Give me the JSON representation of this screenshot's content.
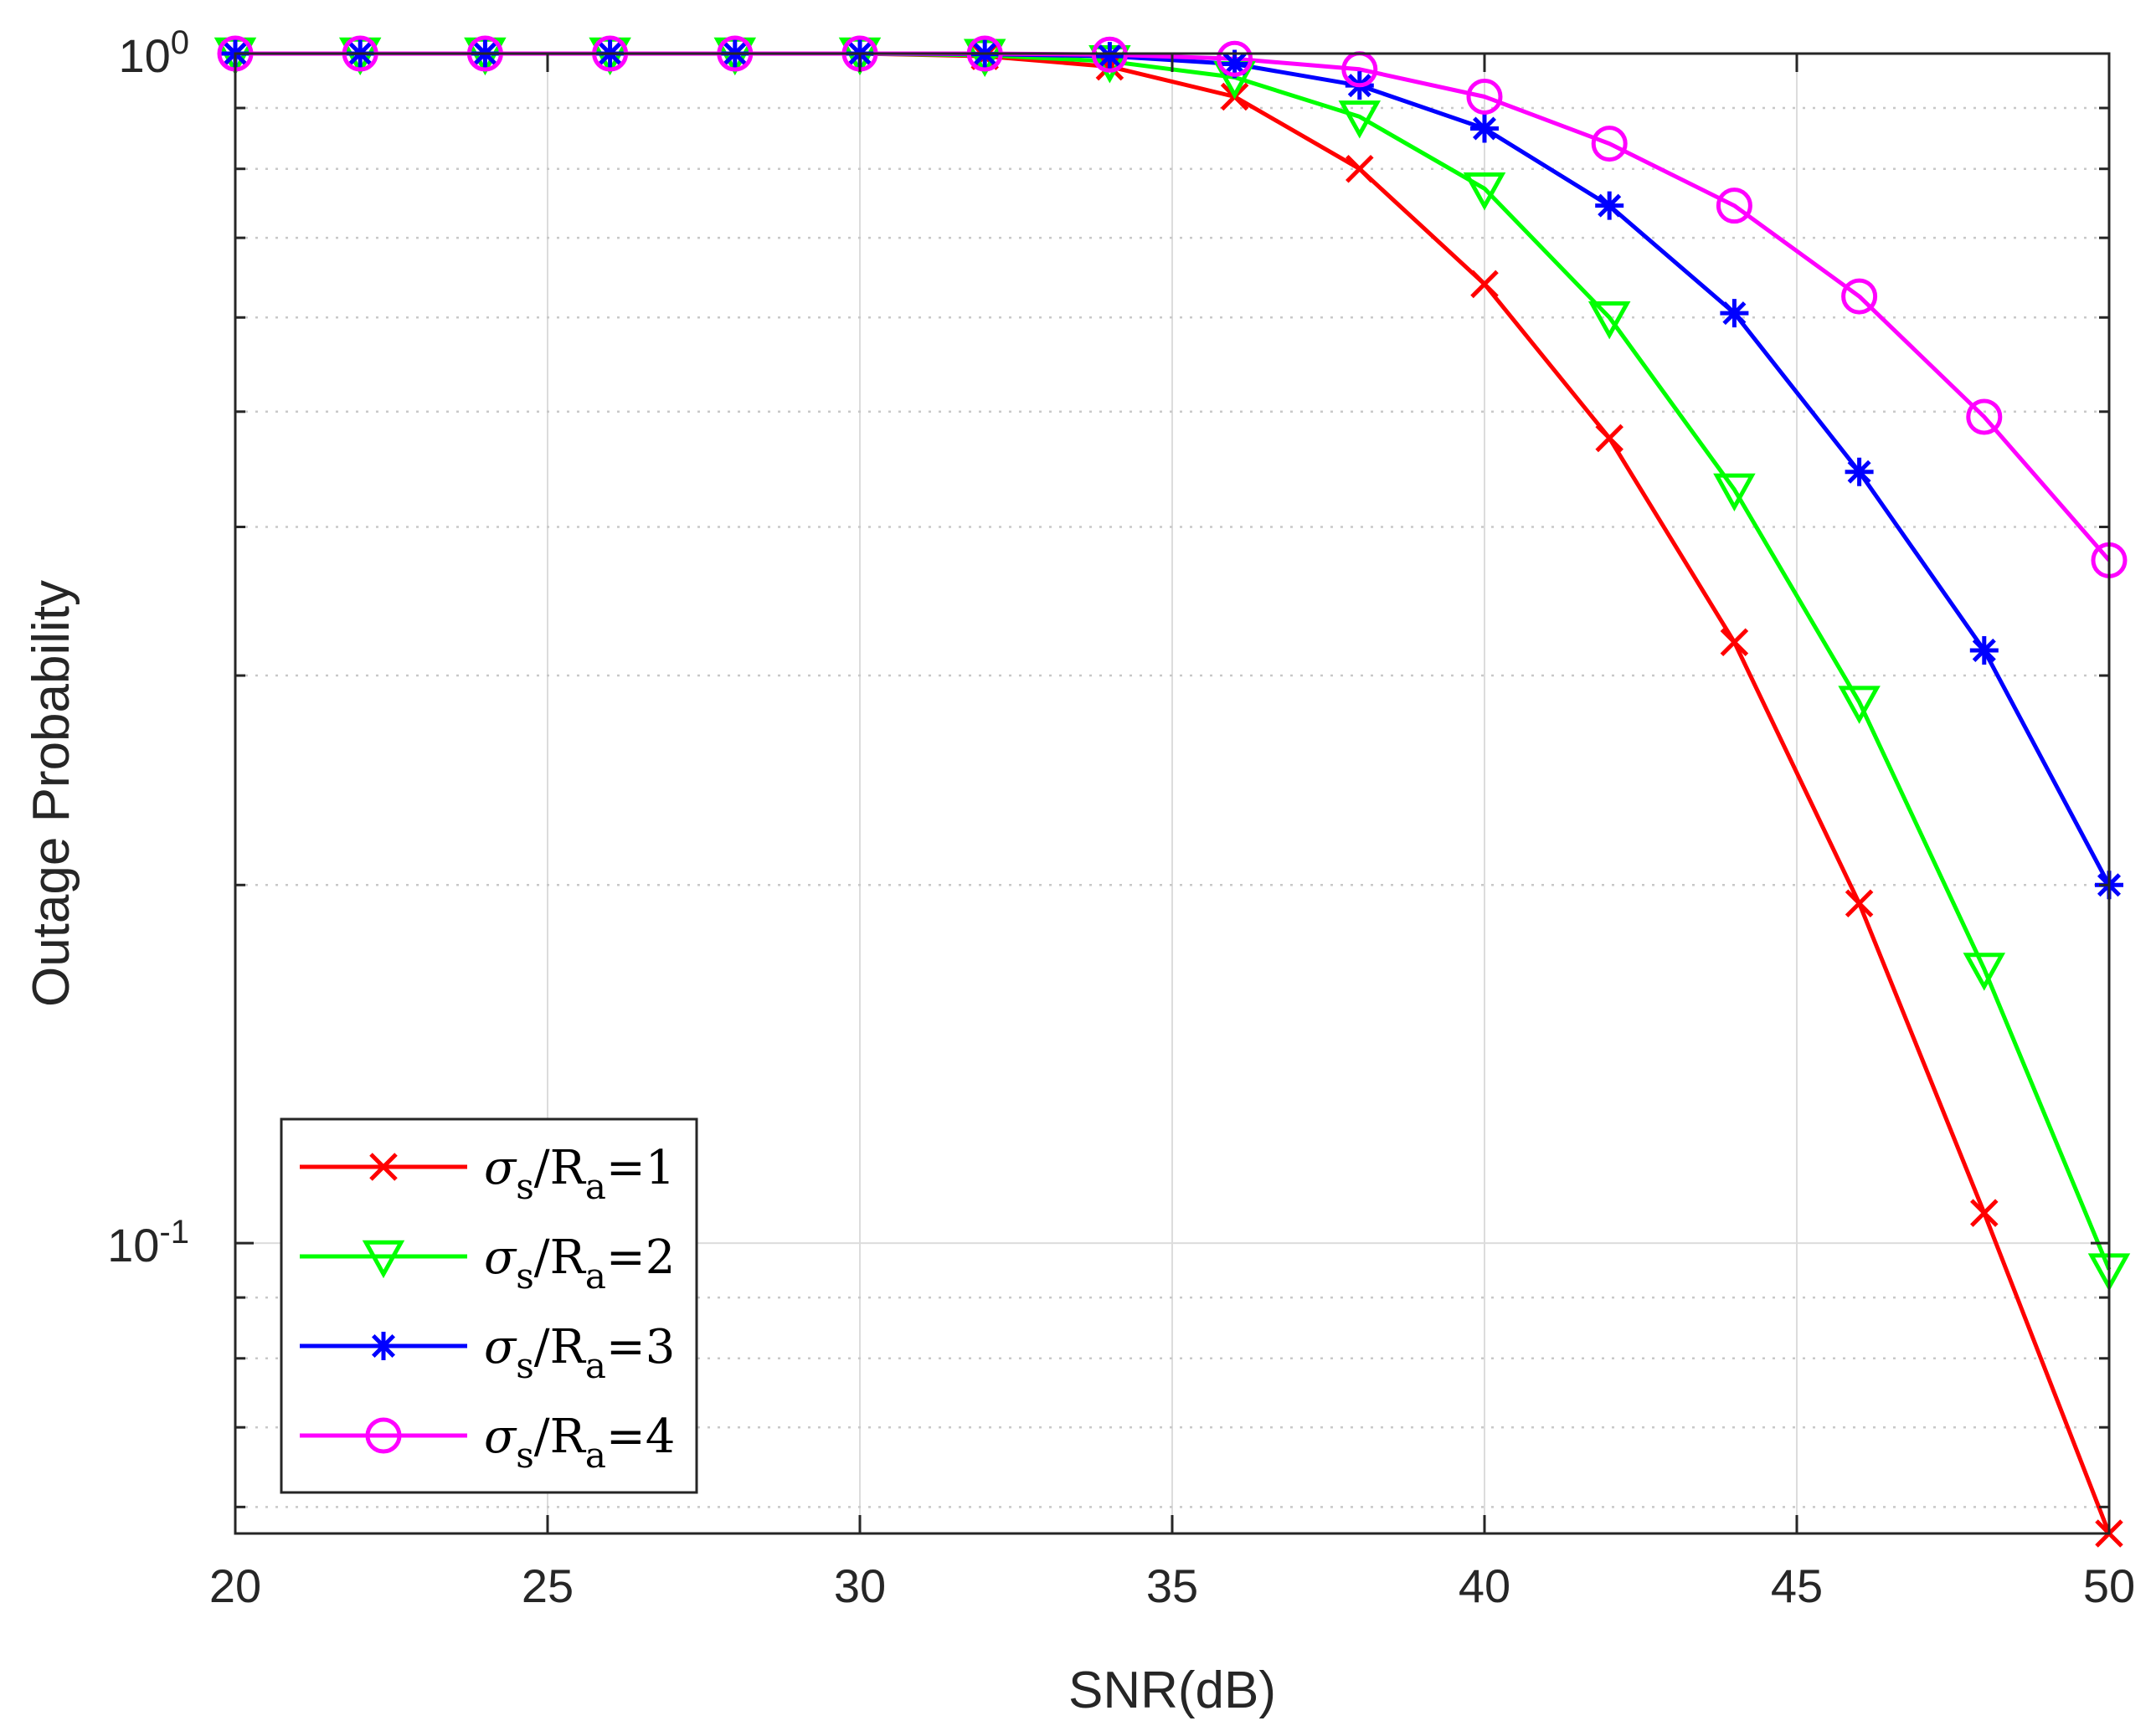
{
  "chart_data": {
    "type": "line",
    "title": "",
    "xlabel": "SNR(dB)",
    "ylabel": "Outage Probability",
    "xlim": [
      20,
      50
    ],
    "ylim": [
      0.057,
      1.0
    ],
    "yscale": "log",
    "grid": true,
    "x_ticks": [
      20,
      25,
      30,
      35,
      40,
      45,
      50
    ],
    "x_tick_labels": [
      "20",
      "25",
      "30",
      "35",
      "40",
      "45",
      "50"
    ],
    "y_ticks": [
      {
        "value": 1.0,
        "base": "10",
        "exp": "0"
      },
      {
        "value": 0.1,
        "base": "10",
        "exp": "-1"
      }
    ],
    "y_minor_ticks": [
      0.06,
      0.07,
      0.08,
      0.09,
      0.2,
      0.3,
      0.4,
      0.5,
      0.6,
      0.7,
      0.8,
      0.9
    ],
    "legend_position": "bottom-left",
    "x": [
      20,
      22,
      24,
      26,
      28,
      30,
      32,
      34,
      36,
      38,
      40,
      42,
      44,
      46,
      48,
      50
    ],
    "series": [
      {
        "name": "σs/Ra=1",
        "legend_sym": "σ",
        "legend_sub1": "s",
        "legend_mid": "/R",
        "legend_sub2": "a",
        "legend_tail": "=1",
        "color": "#ff0000",
        "marker": "x",
        "values": [
          1.0,
          1.0,
          1.0,
          1.0,
          1.0,
          1.0,
          0.995,
          0.975,
          0.92,
          0.8,
          0.64,
          0.475,
          0.32,
          0.193,
          0.106,
          0.057
        ]
      },
      {
        "name": "σs/Ra=2",
        "legend_sym": "σ",
        "legend_sub1": "s",
        "legend_mid": "/R",
        "legend_sub2": "a",
        "legend_tail": "=2",
        "color": "#00ff00",
        "marker": "triangle-down",
        "values": [
          1.0,
          1.0,
          1.0,
          1.0,
          1.0,
          1.0,
          0.997,
          0.985,
          0.955,
          0.885,
          0.77,
          0.6,
          0.43,
          0.285,
          0.17,
          0.095
        ]
      },
      {
        "name": "σs/Ra=3",
        "legend_sym": "σ",
        "legend_sub1": "s",
        "legend_mid": "/R",
        "legend_sub2": "a",
        "legend_tail": "=3",
        "color": "#0000ff",
        "marker": "asterisk",
        "values": [
          1.0,
          1.0,
          1.0,
          1.0,
          1.0,
          1.0,
          0.999,
          0.995,
          0.98,
          0.94,
          0.865,
          0.745,
          0.605,
          0.445,
          0.315,
          0.2
        ]
      },
      {
        "name": "σs/Ra=4",
        "legend_sym": "σ",
        "legend_sub1": "s",
        "legend_mid": "/R",
        "legend_sub2": "a",
        "legend_tail": "=4",
        "color": "#ff00ff",
        "marker": "circle",
        "values": [
          1.0,
          1.0,
          1.0,
          1.0,
          1.0,
          1.0,
          1.0,
          0.998,
          0.99,
          0.97,
          0.92,
          0.84,
          0.745,
          0.625,
          0.495,
          0.375
        ]
      }
    ]
  }
}
